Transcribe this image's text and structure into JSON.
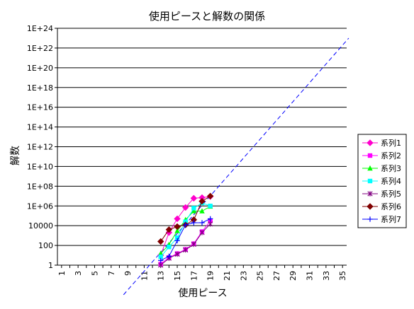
{
  "chart_data": {
    "type": "line",
    "title": "使用ピースと解数の関係",
    "xlabel": "使用ピース",
    "ylabel": "解数",
    "x_ticks": [
      "1",
      "3",
      "5",
      "7",
      "9",
      "11",
      "13",
      "15",
      "17",
      "19",
      "21",
      "23",
      "25",
      "27",
      "29",
      "31",
      "33",
      "35"
    ],
    "x_range": [
      1,
      35
    ],
    "y_scale": "log",
    "y_ticks": [
      "1",
      "100",
      "10000",
      "1E+06",
      "1E+08",
      "1E+10",
      "1E+12",
      "1E+14",
      "1E+16",
      "1E+18",
      "1E+20",
      "1E+22",
      "1E+24"
    ],
    "y_range": [
      1,
      1e+24
    ],
    "grid": "horizontal",
    "legend": "right",
    "series": [
      {
        "name": "系列1",
        "color": "#ff00cc",
        "marker": "diamond",
        "points": [
          [
            13,
            10
          ],
          [
            14,
            2000
          ],
          [
            15,
            50000
          ],
          [
            16,
            700000
          ],
          [
            17,
            6000000
          ],
          [
            18,
            7000000
          ],
          [
            19,
            9000000
          ]
        ]
      },
      {
        "name": "系列2",
        "color": "#ff00ff",
        "marker": "square",
        "points": [
          [
            13,
            1.3
          ],
          [
            14,
            6
          ],
          [
            15,
            15
          ],
          [
            16,
            40
          ],
          [
            17,
            150
          ],
          [
            18,
            2500
          ],
          [
            19,
            30000
          ]
        ]
      },
      {
        "name": "系列3",
        "color": "#00ff00",
        "marker": "triangle",
        "points": [
          [
            13,
            15
          ],
          [
            14,
            120
          ],
          [
            15,
            3000
          ],
          [
            16,
            40000
          ],
          [
            17,
            300000
          ],
          [
            18,
            300000
          ],
          [
            19,
            900000
          ]
        ]
      },
      {
        "name": "系列4",
        "color": "#00ffff",
        "marker": "square",
        "points": [
          [
            13,
            7
          ],
          [
            14,
            70
          ],
          [
            15,
            600
          ],
          [
            16,
            25000
          ],
          [
            17,
            600000
          ],
          [
            18,
            2000000
          ],
          [
            19,
            1000000
          ]
        ]
      },
      {
        "name": "系列5",
        "color": "#800080",
        "marker": "star",
        "points": [
          [
            13,
            1
          ],
          [
            14,
            5
          ],
          [
            15,
            13
          ],
          [
            16,
            35
          ],
          [
            17,
            130
          ],
          [
            18,
            2000
          ],
          [
            19,
            15000
          ]
        ]
      },
      {
        "name": "系列6",
        "color": "#800000",
        "marker": "diamond",
        "points": [
          [
            13,
            250
          ],
          [
            14,
            4000
          ],
          [
            15,
            8000
          ],
          [
            16,
            12000
          ],
          [
            17,
            40000
          ],
          [
            18,
            3000000
          ],
          [
            19,
            10000000
          ]
        ]
      },
      {
        "name": "系列7",
        "color": "#0000ff",
        "marker": "plus",
        "points": [
          [
            13,
            3
          ],
          [
            14,
            8
          ],
          [
            15,
            300
          ],
          [
            16,
            12000
          ],
          [
            17,
            20000
          ],
          [
            18,
            20000
          ],
          [
            19,
            50000
          ]
        ]
      }
    ],
    "trendline": {
      "color": "#0000ff",
      "style": "dashed",
      "points": [
        [
          8.5,
          0.001
        ],
        [
          35.75,
          1e+23
        ]
      ]
    }
  }
}
